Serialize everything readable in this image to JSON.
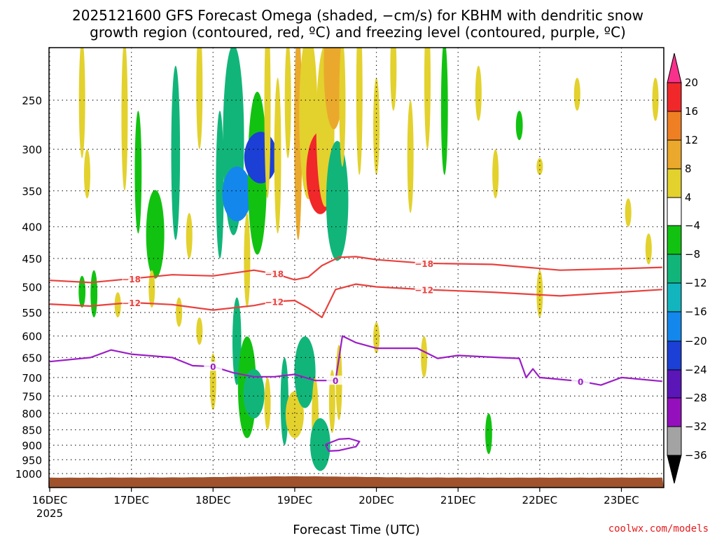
{
  "chart_data": {
    "type": "heatmap",
    "title_line1": "2025121600 GFS Forecast Omega (shaded, −cm/s) for KBHM with dendritic snow",
    "title_line2": "growth region (contoured, red, ºC) and freezing level (contoured, purple, ºC)",
    "xlabel": "Forecast Time (UTC)",
    "credit": "coolwx.com/models",
    "x_range_hours": [
      0,
      180
    ],
    "x_ticks": [
      {
        "h": 0,
        "label": "16DEC",
        "sub": "2025"
      },
      {
        "h": 24,
        "label": "17DEC"
      },
      {
        "h": 48,
        "label": "18DEC"
      },
      {
        "h": 72,
        "label": "19DEC"
      },
      {
        "h": 96,
        "label": "20DEC"
      },
      {
        "h": 120,
        "label": "21DEC"
      },
      {
        "h": 144,
        "label": "22DEC"
      },
      {
        "h": 168,
        "label": "23DEC"
      }
    ],
    "y_ticks": [
      250,
      300,
      350,
      400,
      450,
      500,
      550,
      600,
      650,
      700,
      750,
      800,
      850,
      900,
      950,
      1000
    ],
    "colorbar": {
      "labels": [
        "20",
        "16",
        "12",
        "8",
        "4",
        "−4",
        "−8",
        "−12",
        "−16",
        "−20",
        "−24",
        "−28",
        "−32",
        "−36"
      ],
      "colors": [
        "#f9318c",
        "#f0282a",
        "#ef7f23",
        "#eaa92c",
        "#e3d12e",
        "#ffffff",
        "#12c211",
        "#11b57a",
        "#12b5be",
        "#1387ec",
        "#1c3fd5",
        "#5a16b7",
        "#9410bd",
        "#a3a3a3",
        "#000000"
      ]
    },
    "terrain_color": "#a0522d",
    "series": [
      {
        "name": "dgz -18",
        "color": "#e8413d",
        "label": "−18",
        "points": [
          [
            0,
            488
          ],
          [
            12,
            492
          ],
          [
            24,
            485
          ],
          [
            36,
            478
          ],
          [
            48,
            480
          ],
          [
            60,
            470
          ],
          [
            66,
            476
          ],
          [
            72,
            487
          ],
          [
            76,
            482
          ],
          [
            80,
            462
          ],
          [
            85,
            448
          ],
          [
            90,
            447
          ],
          [
            96,
            452
          ],
          [
            110,
            458
          ],
          [
            130,
            460
          ],
          [
            150,
            470
          ],
          [
            170,
            467
          ],
          [
            180,
            465
          ]
        ]
      },
      {
        "name": "dgz -12",
        "color": "#e8413d",
        "label": "−12",
        "points": [
          [
            0,
            533
          ],
          [
            12,
            537
          ],
          [
            24,
            530
          ],
          [
            36,
            534
          ],
          [
            48,
            545
          ],
          [
            60,
            536
          ],
          [
            66,
            528
          ],
          [
            72,
            526
          ],
          [
            76,
            541
          ],
          [
            80,
            560
          ],
          [
            84,
            505
          ],
          [
            90,
            495
          ],
          [
            96,
            500
          ],
          [
            110,
            505
          ],
          [
            130,
            510
          ],
          [
            150,
            517
          ],
          [
            165,
            511
          ],
          [
            180,
            505
          ]
        ]
      },
      {
        "name": "freezing level 0",
        "color": "#9b1ec7",
        "label": "0",
        "points": [
          [
            0,
            660
          ],
          [
            12,
            650
          ],
          [
            18,
            632
          ],
          [
            24,
            642
          ],
          [
            36,
            650
          ],
          [
            42,
            670
          ],
          [
            48,
            672
          ],
          [
            54,
            688
          ],
          [
            60,
            698
          ],
          [
            66,
            698
          ],
          [
            72,
            692
          ],
          [
            78,
            708
          ],
          [
            84,
            708
          ],
          [
            86,
            600
          ],
          [
            90,
            615
          ],
          [
            96,
            628
          ],
          [
            108,
            628
          ],
          [
            114,
            652
          ],
          [
            120,
            645
          ],
          [
            132,
            650
          ],
          [
            138,
            652
          ],
          [
            140,
            700
          ],
          [
            142,
            678
          ],
          [
            144,
            700
          ],
          [
            156,
            710
          ],
          [
            162,
            720
          ],
          [
            168,
            700
          ],
          [
            180,
            710
          ]
        ]
      },
      {
        "name": "freezing level 0 (closed)",
        "color": "#9b1ec7",
        "label": "",
        "points": [
          [
            81,
            898
          ],
          [
            85,
            880
          ],
          [
            88,
            878
          ],
          [
            91,
            888
          ],
          [
            90,
            905
          ],
          [
            85,
            918
          ],
          [
            82,
            920
          ],
          [
            81,
            898
          ]
        ]
      }
    ],
    "omega_cells": [
      {
        "hour": 9.5,
        "p0": 200,
        "p1": 310,
        "v": 5
      },
      {
        "hour": 11,
        "p0": 300,
        "p1": 360,
        "v": 5
      },
      {
        "hour": 22,
        "p0": 200,
        "p1": 350,
        "v": 5
      },
      {
        "hour": 26,
        "p0": 260,
        "p1": 410,
        "v": -7
      },
      {
        "hour": 31,
        "p0": 360,
        "p1": 470,
        "v": -10
      },
      {
        "hour": 37,
        "p0": 220,
        "p1": 420,
        "v": -9
      },
      {
        "hour": 41,
        "p0": 380,
        "p1": 450,
        "v": 5
      },
      {
        "hour": 44,
        "p0": 190,
        "p1": 300,
        "v": 5
      },
      {
        "hour": 50,
        "p0": 260,
        "p1": 450,
        "v": -8
      },
      {
        "hour": 54,
        "p0": 210,
        "p1": 400,
        "v": -13
      },
      {
        "hour": 55,
        "p0": 330,
        "p1": 380,
        "v": -21
      },
      {
        "hour": 58,
        "p0": 380,
        "p1": 540,
        "v": 6
      },
      {
        "hour": 61,
        "p0": 250,
        "p1": 430,
        "v": -11
      },
      {
        "hour": 62,
        "p0": 290,
        "p1": 330,
        "v": -25
      },
      {
        "hour": 64,
        "p0": 180,
        "p1": 360,
        "v": 5
      },
      {
        "hour": 67,
        "p0": 230,
        "p1": 410,
        "v": 7
      },
      {
        "hour": 70,
        "p0": 200,
        "p1": 310,
        "v": 5
      },
      {
        "hour": 73,
        "p0": 190,
        "p1": 420,
        "v": 8
      },
      {
        "hour": 76,
        "p0": 200,
        "p1": 350,
        "v": 10
      },
      {
        "hour": 79.5,
        "p0": 290,
        "p1": 370,
        "v": 20
      },
      {
        "hour": 81,
        "p0": 210,
        "p1": 360,
        "v": 10
      },
      {
        "hour": 83.5,
        "p0": 180,
        "p1": 270,
        "v": 12
      },
      {
        "hour": 84.5,
        "p0": 300,
        "p1": 440,
        "v": -14
      },
      {
        "hour": 86,
        "p0": 200,
        "p1": 320,
        "v": 6
      },
      {
        "hour": 91,
        "p0": 180,
        "p1": 330,
        "v": 5
      },
      {
        "hour": 96,
        "p0": 230,
        "p1": 330,
        "v": 5
      },
      {
        "hour": 101,
        "p0": 190,
        "p1": 260,
        "v": 5
      },
      {
        "hour": 106,
        "p0": 250,
        "p1": 380,
        "v": 5
      },
      {
        "hour": 111,
        "p0": 180,
        "p1": 300,
        "v": 5
      },
      {
        "hour": 116,
        "p0": 200,
        "p1": 330,
        "v": -7
      },
      {
        "hour": 126,
        "p0": 220,
        "p1": 270,
        "v": 5
      },
      {
        "hour": 131,
        "p0": 300,
        "p1": 360,
        "v": 5
      },
      {
        "hour": 138,
        "p0": 260,
        "p1": 290,
        "v": -7
      },
      {
        "hour": 144,
        "p0": 310,
        "p1": 330,
        "v": 5
      },
      {
        "hour": 155,
        "p0": 230,
        "p1": 260,
        "v": 5
      },
      {
        "hour": 170,
        "p0": 360,
        "p1": 400,
        "v": 5
      },
      {
        "hour": 178,
        "p0": 230,
        "p1": 270,
        "v": 5
      },
      {
        "hour": 9.5,
        "p0": 480,
        "p1": 540,
        "v": -7
      },
      {
        "hour": 13,
        "p0": 470,
        "p1": 560,
        "v": -7
      },
      {
        "hour": 20,
        "p0": 510,
        "p1": 560,
        "v": 5
      },
      {
        "hour": 30,
        "p0": 470,
        "p1": 540,
        "v": 5
      },
      {
        "hour": 38,
        "p0": 520,
        "p1": 580,
        "v": 5
      },
      {
        "hour": 44,
        "p0": 560,
        "p1": 620,
        "v": 5
      },
      {
        "hour": 48,
        "p0": 640,
        "p1": 790,
        "v": 5
      },
      {
        "hour": 55,
        "p0": 520,
        "p1": 720,
        "v": -9
      },
      {
        "hour": 58,
        "p0": 620,
        "p1": 850,
        "v": -10
      },
      {
        "hour": 60,
        "p0": 700,
        "p1": 790,
        "v": -13
      },
      {
        "hour": 64,
        "p0": 700,
        "p1": 850,
        "v": 5
      },
      {
        "hour": 69,
        "p0": 650,
        "p1": 900,
        "v": -8
      },
      {
        "hour": 72,
        "p0": 760,
        "p1": 850,
        "v": 10
      },
      {
        "hour": 75,
        "p0": 620,
        "p1": 760,
        "v": -13
      },
      {
        "hour": 78,
        "p0": 700,
        "p1": 960,
        "v": 7
      },
      {
        "hour": 79.5,
        "p0": 840,
        "p1": 960,
        "v": -12
      },
      {
        "hour": 83,
        "p0": 680,
        "p1": 860,
        "v": 6
      },
      {
        "hour": 85,
        "p0": 620,
        "p1": 820,
        "v": 5
      },
      {
        "hour": 96,
        "p0": 570,
        "p1": 640,
        "v": 5
      },
      {
        "hour": 110,
        "p0": 600,
        "p1": 700,
        "v": 5
      },
      {
        "hour": 129,
        "p0": 800,
        "p1": 930,
        "v": -7
      },
      {
        "hour": 144,
        "p0": 470,
        "p1": 560,
        "v": 5
      },
      {
        "hour": 176,
        "p0": 410,
        "p1": 460,
        "v": 5
      }
    ]
  }
}
